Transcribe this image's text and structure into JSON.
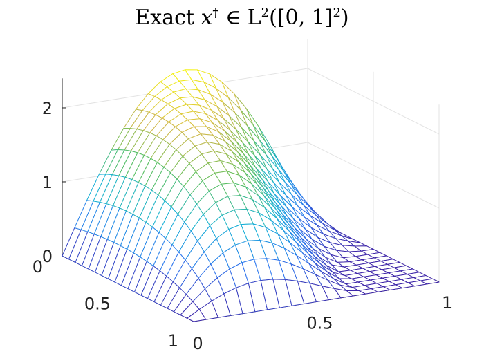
{
  "chart_data": {
    "type": "surface",
    "title": {
      "prefix": "Exact ",
      "variable": "x",
      "superscript": "†",
      "middle": " ∈ L",
      "exponent": "2",
      "space": "([0, 1]",
      "space_exponent": "2",
      "suffix": ")"
    },
    "xlabel": "",
    "ylabel": "",
    "zlabel": "",
    "x_range": [
      0,
      1
    ],
    "y_range": [
      0,
      1
    ],
    "z_range": [
      0,
      2.4
    ],
    "x_ticks": [
      "0",
      "0.5",
      "1"
    ],
    "y_ticks": [
      "0",
      "0.5",
      "1"
    ],
    "z_ticks": [
      "0",
      "1",
      "2"
    ],
    "grid": true,
    "colormap": "parula",
    "colormap_colors": [
      "#3e26a8",
      "#2c75ef",
      "#16b2d6",
      "#5dc05c",
      "#d3b84a",
      "#f9fb0e"
    ],
    "mesh_resolution": 21,
    "surface_formula": "x(s,t) = 2.25 · (sin(π·t) + s·sin(2π·t))·(1 − s)^0.8",
    "peak": {
      "s": 0.0,
      "t": 0.5,
      "z": 2.25
    },
    "corner_values": {
      "s0_t0": 0.0,
      "s0_t1": 0.0,
      "s1_t0": 0.0,
      "s1_t1": 0.0
    }
  }
}
